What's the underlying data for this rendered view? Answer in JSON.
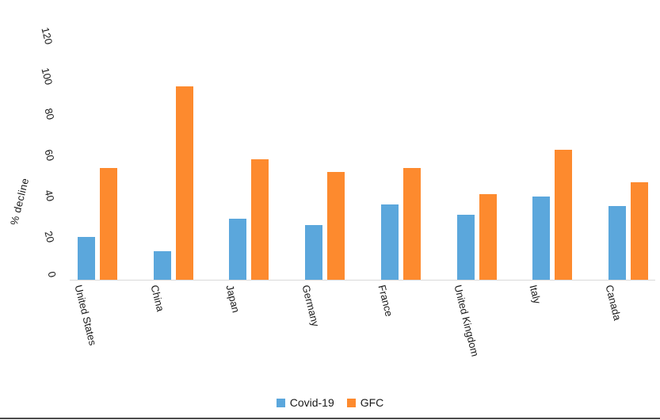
{
  "chart_data": {
    "type": "bar",
    "title": "",
    "xlabel": "",
    "ylabel": "% decline",
    "categories": [
      "United States",
      "China",
      "Japan",
      "Germany",
      "France",
      "United Kingdom",
      "Italy",
      "Canada"
    ],
    "series": [
      {
        "name": "Covid-19",
        "color": "#5BA7DC",
        "values": [
          21,
          14,
          30,
          27,
          37,
          32,
          41,
          36
        ]
      },
      {
        "name": "GFC",
        "color": "#FD8A2E",
        "values": [
          55,
          95,
          59,
          53,
          55,
          42,
          64,
          48
        ]
      }
    ],
    "yticks": [
      0,
      20,
      40,
      60,
      80,
      100,
      120
    ],
    "ylim": [
      0,
      130
    ],
    "grid": false,
    "legend_position": "bottom",
    "tick_rotation_deg": 76,
    "axis_line_color": "#d9d9d9",
    "text_color": "#1a1a1a"
  },
  "legend": {
    "items": [
      {
        "label": "Covid-19",
        "color": "#5BA7DC"
      },
      {
        "label": "GFC",
        "color": "#FD8A2E"
      }
    ]
  },
  "frame": {
    "bottom_border_color": "#4a4a4a"
  }
}
